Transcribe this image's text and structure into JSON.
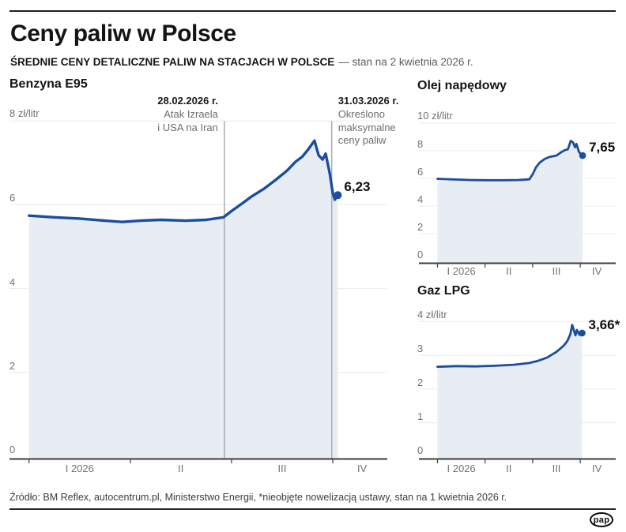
{
  "header": {
    "title": "Ceny paliw w Polsce",
    "subtitle_bold": "ŚREDNIE CENY DETALICZNE PALIW NA STACJACH W POLSCE",
    "subtitle_rest": "— stan na 2 kwietnia 2026 r."
  },
  "footer": {
    "source": "Źródło: BM Reflex, autocentrum.pl, Ministerstwo Energii, *nieobjęte nowelizacją ustawy, stan na 1 kwietnia 2026 r.",
    "logo": "pap"
  },
  "colors": {
    "line": "#1c4d9e",
    "area": "#e8edf4",
    "event_line": "#a9adb3",
    "grid": "#ececec",
    "axis": "#3c3c3c",
    "tick": "#4a4a4a"
  },
  "chart_data": [
    {
      "id": "benzyna",
      "type": "area",
      "title": "Benzyna E95",
      "unit_label": "8 zł/litr",
      "top_value": 8,
      "ylim": [
        0,
        8
      ],
      "x_unit": "months since 2026-01-01 (0=I, 1=II, 2=III, 3=IV)",
      "x_ticks": [
        0,
        1,
        2,
        3
      ],
      "x_labels": [
        "I 2026",
        "II",
        "III",
        "IV"
      ],
      "y_ticks": [
        {
          "v": 6,
          "label": "6"
        },
        {
          "v": 4,
          "label": "4"
        },
        {
          "v": 2,
          "label": "2"
        },
        {
          "v": 0,
          "label": "0"
        }
      ],
      "series": [
        [
          0,
          5.74
        ],
        [
          0.25,
          5.7
        ],
        [
          0.5,
          5.67
        ],
        [
          0.75,
          5.62
        ],
        [
          0.92,
          5.59
        ],
        [
          1.1,
          5.62
        ],
        [
          1.3,
          5.64
        ],
        [
          1.55,
          5.62
        ],
        [
          1.75,
          5.64
        ],
        [
          1.92,
          5.7
        ],
        [
          2.0,
          5.85
        ],
        [
          2.1,
          6.02
        ],
        [
          2.2,
          6.2
        ],
        [
          2.32,
          6.38
        ],
        [
          2.45,
          6.62
        ],
        [
          2.55,
          6.82
        ],
        [
          2.63,
          7.02
        ],
        [
          2.7,
          7.15
        ],
        [
          2.76,
          7.33
        ],
        [
          2.82,
          7.53
        ],
        [
          2.86,
          7.18
        ],
        [
          2.9,
          7.08
        ],
        [
          2.93,
          7.22
        ],
        [
          2.97,
          6.75
        ],
        [
          3.0,
          6.28
        ],
        [
          3.02,
          6.12
        ],
        [
          3.05,
          6.23
        ]
      ],
      "end": {
        "label": "6,23",
        "value": 6.23
      },
      "events": [
        {
          "mf": 1.93,
          "date": "28.02.2026 r.",
          "lines": [
            "Atak Izraela",
            "i USA na Iran"
          ]
        },
        {
          "mf": 2.99,
          "date": "31.03.2026 r.",
          "lines": [
            "Określono",
            "maksymalne",
            "ceny paliw"
          ]
        }
      ]
    },
    {
      "id": "olej",
      "type": "area",
      "title": "Olej napędowy",
      "unit_label": "10 zł/litr",
      "top_value": 10,
      "ylim": [
        0,
        10
      ],
      "x_unit": "months since 2026-01-01 (0=I, 1=II, 2=III, 3=IV)",
      "x_ticks": [
        0,
        1,
        2,
        3
      ],
      "x_labels": [
        "I 2026",
        "II",
        "III",
        "IV"
      ],
      "y_ticks": [
        {
          "v": 8,
          "label": "8"
        },
        {
          "v": 6,
          "label": "6"
        },
        {
          "v": 4,
          "label": "4"
        },
        {
          "v": 2,
          "label": "2"
        },
        {
          "v": 0,
          "label": "0"
        }
      ],
      "series": [
        [
          0,
          5.97
        ],
        [
          0.35,
          5.92
        ],
        [
          0.7,
          5.88
        ],
        [
          1.05,
          5.86
        ],
        [
          1.4,
          5.86
        ],
        [
          1.7,
          5.88
        ],
        [
          1.93,
          5.93
        ],
        [
          2.0,
          6.3
        ],
        [
          2.07,
          6.8
        ],
        [
          2.15,
          7.15
        ],
        [
          2.25,
          7.4
        ],
        [
          2.35,
          7.55
        ],
        [
          2.5,
          7.65
        ],
        [
          2.6,
          7.9
        ],
        [
          2.68,
          8.05
        ],
        [
          2.74,
          8.1
        ],
        [
          2.8,
          8.72
        ],
        [
          2.85,
          8.6
        ],
        [
          2.89,
          8.25
        ],
        [
          2.92,
          8.5
        ],
        [
          2.97,
          7.95
        ],
        [
          3.02,
          7.7
        ],
        [
          3.05,
          7.65
        ]
      ],
      "end": {
        "label": "7,65",
        "value": 7.65
      },
      "events": []
    },
    {
      "id": "gaz",
      "type": "area",
      "title": "Gaz LPG",
      "unit_label": "4 zł/litr",
      "top_value": 4,
      "ylim": [
        0,
        4
      ],
      "x_unit": "months since 2026-01-01 (0=I, 1=II, 2=III, 3=IV)",
      "x_ticks": [
        0,
        1,
        2,
        3
      ],
      "x_labels": [
        "I 2026",
        "II",
        "III",
        "IV"
      ],
      "y_ticks": [
        {
          "v": 3,
          "label": "3"
        },
        {
          "v": 2,
          "label": "2"
        },
        {
          "v": 1,
          "label": "1"
        },
        {
          "v": 0,
          "label": "0"
        }
      ],
      "series": [
        [
          0,
          2.66
        ],
        [
          0.4,
          2.68
        ],
        [
          0.8,
          2.67
        ],
        [
          1.2,
          2.69
        ],
        [
          1.6,
          2.72
        ],
        [
          1.93,
          2.77
        ],
        [
          2.1,
          2.83
        ],
        [
          2.3,
          2.93
        ],
        [
          2.5,
          3.1
        ],
        [
          2.65,
          3.28
        ],
        [
          2.73,
          3.42
        ],
        [
          2.79,
          3.62
        ],
        [
          2.83,
          3.9
        ],
        [
          2.9,
          3.59
        ],
        [
          2.93,
          3.75
        ],
        [
          2.98,
          3.61
        ],
        [
          3.04,
          3.66
        ]
      ],
      "end": {
        "label": "3,66*",
        "value": 3.66
      },
      "events": []
    }
  ]
}
